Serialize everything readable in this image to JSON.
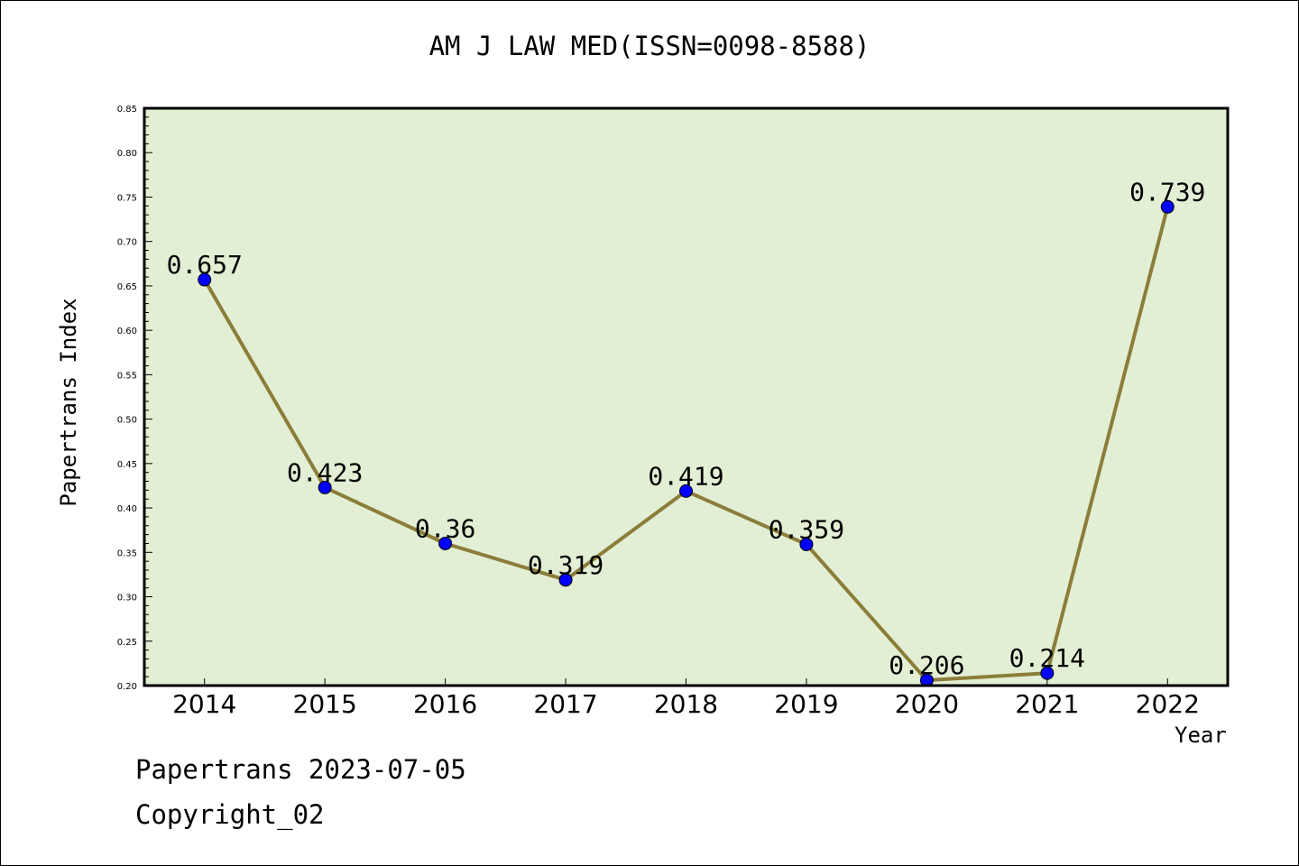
{
  "chart_data": {
    "type": "line",
    "title": "AM J LAW MED(ISSN=0098-8588)",
    "xlabel": "Year",
    "ylabel": "Papertrans Index",
    "categories": [
      "2014",
      "2015",
      "2016",
      "2017",
      "2018",
      "2019",
      "2020",
      "2021",
      "2022"
    ],
    "series": [
      {
        "values": [
          0.657,
          0.423,
          0.36,
          0.319,
          0.419,
          0.359,
          0.206,
          0.214,
          0.739
        ],
        "labels": [
          "0.657",
          "0.423",
          "0.36",
          "0.319",
          "0.419",
          "0.359",
          "0.206",
          "0.214",
          "0.739"
        ]
      }
    ],
    "ylim": [
      0.2,
      0.85
    ],
    "yticks": [
      "0.20",
      "0.25",
      "0.30",
      "0.35",
      "0.40",
      "0.45",
      "0.50",
      "0.55",
      "0.60",
      "0.65",
      "0.70",
      "0.75",
      "0.80",
      "0.85"
    ],
    "grid": false,
    "legend": "none",
    "colors": {
      "plot_background": "#e2efd4",
      "line": "#8b7d3a",
      "marker": "#0000ff",
      "axis": "#000000"
    }
  },
  "footer": {
    "date_text": "Papertrans 2023-07-05",
    "copyright_text": "Copyright_02"
  }
}
